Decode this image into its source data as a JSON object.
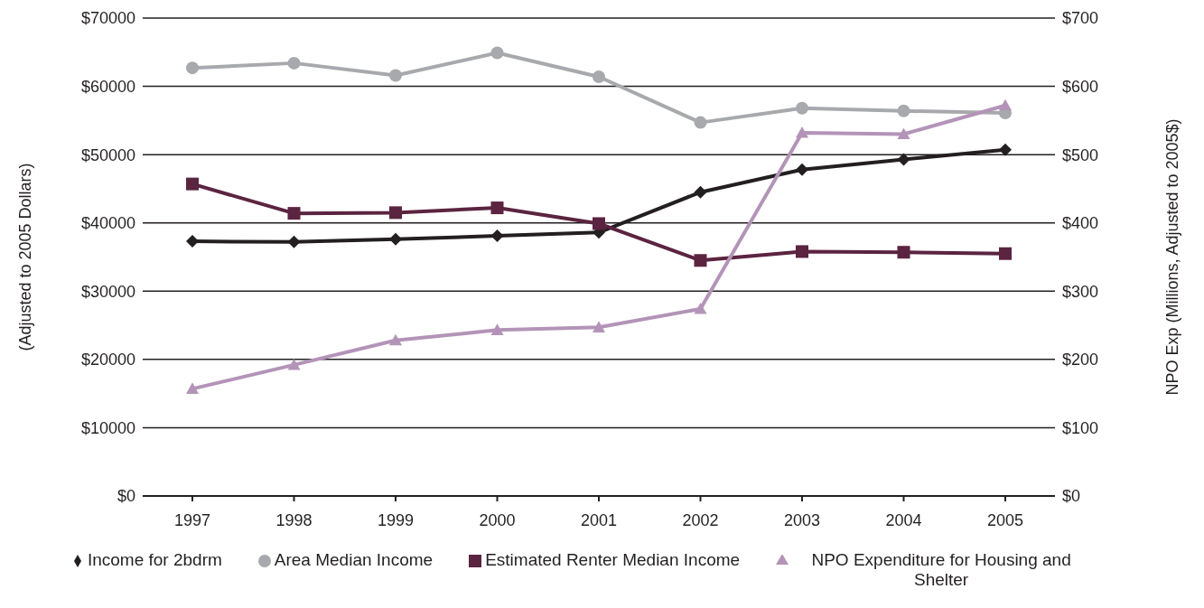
{
  "chart_data": {
    "type": "line",
    "ylabel": "(Adjusted to 2005 Dollars)",
    "y2label": "NPO Exp (Millions, Adjusted to 2005$)",
    "categories": [
      "1997",
      "1998",
      "1999",
      "2000",
      "2001",
      "2002",
      "2003",
      "2004",
      "2005"
    ],
    "series": [
      {
        "name": "Income for 2bdrm",
        "color": "#231f20",
        "marker": "diamond",
        "values": [
          37300,
          37200,
          37600,
          38100,
          38600,
          44500,
          47800,
          49300,
          50700
        ]
      },
      {
        "name": "Area Median Income",
        "color": "#a7a9ac",
        "marker": "circle",
        "values": [
          62700,
          63400,
          61600,
          64900,
          61400,
          54700,
          56800,
          56400,
          56100
        ]
      },
      {
        "name": "Estimated Renter Median Income",
        "color": "#5b2440",
        "marker": "square",
        "values": [
          45700,
          41400,
          41500,
          42200,
          39900,
          34500,
          35800,
          35700,
          35500
        ]
      },
      {
        "name": "NPO Expenditure for Housing and Shelter",
        "color": "#b394b8",
        "marker": "triangle",
        "axis": "y2",
        "values": [
          157,
          192,
          228,
          243,
          247,
          274,
          532,
          530,
          572
        ]
      }
    ],
    "ylim": [
      0,
      70000
    ],
    "yticks": [
      {
        "value": 0,
        "label": "$0"
      },
      {
        "value": 10000,
        "label": "$10000"
      },
      {
        "value": 20000,
        "label": "$20000"
      },
      {
        "value": 30000,
        "label": "$30000"
      },
      {
        "value": 40000,
        "label": "$40000"
      },
      {
        "value": 50000,
        "label": "$50000"
      },
      {
        "value": 60000,
        "label": "$60000"
      },
      {
        "value": 70000,
        "label": "$70000"
      }
    ],
    "y2lim": [
      0,
      700
    ],
    "y2ticks": [
      {
        "value": 0,
        "label": "$0"
      },
      {
        "value": 100,
        "label": "$100"
      },
      {
        "value": 200,
        "label": "$200"
      },
      {
        "value": 300,
        "label": "$300"
      },
      {
        "value": 400,
        "label": "$400"
      },
      {
        "value": 500,
        "label": "$500"
      },
      {
        "value": 600,
        "label": "$600"
      },
      {
        "value": 700,
        "label": "$700"
      }
    ],
    "grid": "y",
    "legend": "bottom",
    "line_style": "solid"
  }
}
